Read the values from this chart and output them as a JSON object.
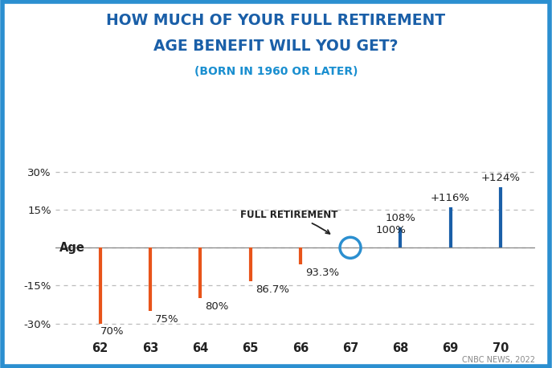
{
  "title_line1": "HOW MUCH OF YOUR FULL RETIREMENT",
  "title_line2": "AGE BENEFIT WILL YOU GET?",
  "subtitle": "(BORN IN 1960 OR LATER)",
  "ages": [
    62,
    63,
    64,
    65,
    66,
    67,
    68,
    69,
    70
  ],
  "display_values": [
    "70%",
    "75%",
    "80%",
    "86.7%",
    "93.3%",
    "100%",
    "108%",
    "+116%",
    "+124%"
  ],
  "orange_ages": [
    62,
    63,
    64,
    65,
    66
  ],
  "orange_values": [
    -30,
    -25,
    -20,
    -13.3,
    -6.7
  ],
  "blue_ages": [
    68,
    69,
    70
  ],
  "blue_values": [
    8,
    16,
    24
  ],
  "ylim": [
    -36,
    34
  ],
  "yticks": [
    -30,
    -15,
    0,
    15,
    30
  ],
  "ytick_labels": [
    "-30%",
    "-15%",
    "",
    "15%",
    "30%"
  ],
  "bg_color": "#FFFFFF",
  "border_color": "#2B8FD0",
  "title_color": "#1A5FA8",
  "subtitle_color": "#1A8FD0",
  "grid_color": "#BBBBBB",
  "orange_color": "#E8541A",
  "blue_color": "#1A5FA8",
  "circle_color": "#2B8FD0",
  "text_color": "#222222",
  "footnote": "CNBC NEWS, 2022",
  "age_label": "Age"
}
